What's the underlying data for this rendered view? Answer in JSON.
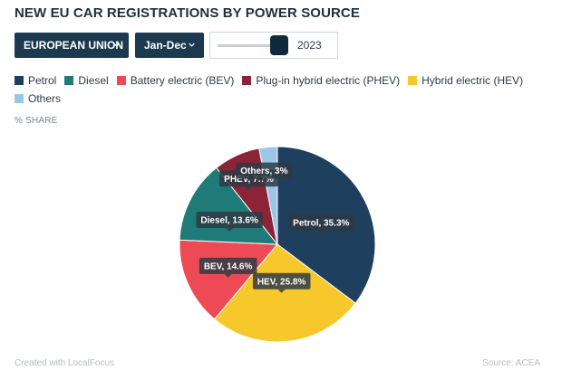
{
  "title": "NEW EU CAR REGISTRATIONS BY POWER SOURCE",
  "controls": {
    "region": "EUROPEAN UNION",
    "period": "Jan-Dec",
    "year": "2023",
    "year_slider_position": 0.9
  },
  "legend": [
    {
      "label": "Petrol",
      "color": "#1f3f5f"
    },
    {
      "label": "Diesel",
      "color": "#1e7b77"
    },
    {
      "label": "Battery electric (BEV)",
      "color": "#ed4a55"
    },
    {
      "label": "Plug-in hybrid electric (PHEV)",
      "color": "#8a2436"
    },
    {
      "label": "Hybrid electric (HEV)",
      "color": "#f7c82c"
    },
    {
      "label": "Others",
      "color": "#9cc5e6"
    }
  ],
  "unit_label": "% SHARE",
  "footer": {
    "left": "Created with LocalFocus",
    "right": "Source: ACEA"
  },
  "chart_data": {
    "type": "pie",
    "year": "2023",
    "slices": [
      {
        "name": "Petrol",
        "value": 35.3,
        "color": "#1f3f5f",
        "label": "Petrol, 35.3%"
      },
      {
        "name": "Hybrid electric (HEV)",
        "value": 25.8,
        "color": "#f7c82c",
        "label": "HEV, 25.8%"
      },
      {
        "name": "Battery electric (BEV)",
        "value": 14.6,
        "color": "#ed4a55",
        "label": "BEV, 14.6%"
      },
      {
        "name": "Diesel",
        "value": 13.6,
        "color": "#1e7b77",
        "label": "Diesel, 13.6%"
      },
      {
        "name": "Plug-in hybrid electric (PHEV)",
        "value": 7.7,
        "color": "#8a2436",
        "label": "PHEV, 7.7%"
      },
      {
        "name": "Others",
        "value": 3,
        "color": "#9cc5e6",
        "label": "Others, 3%"
      }
    ]
  }
}
